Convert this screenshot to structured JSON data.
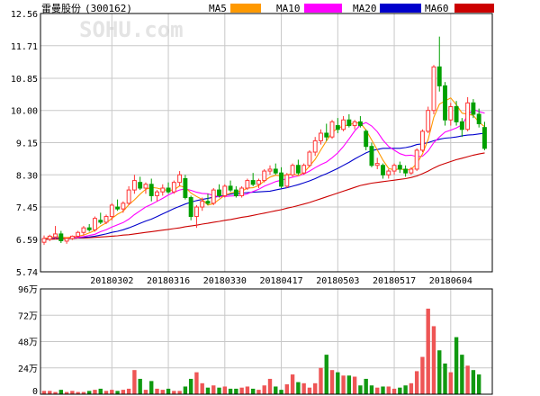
{
  "header": {
    "stock_name": "雷曼股份",
    "stock_code": "(300162)",
    "watermark": "SOHU.com"
  },
  "colors": {
    "up": "#ff3333",
    "down": "#00a000",
    "ma5": "#ff9900",
    "ma10": "#ff00ff",
    "ma20": "#0000cc",
    "ma60": "#cc0000",
    "grid": "#c8c8c8",
    "axis": "#000000"
  },
  "chart_data": [
    {
      "type": "candlestick",
      "title": "雷曼股份(300162)",
      "legend": [
        {
          "name": "MA5",
          "color": "#ff9900"
        },
        {
          "name": "MA10",
          "color": "#ff00ff"
        },
        {
          "name": "MA20",
          "color": "#0000cc"
        },
        {
          "name": "MA60",
          "color": "#cc0000"
        }
      ],
      "ylim": [
        5.74,
        12.56
      ],
      "yticks": [
        "12.56",
        "11.71",
        "10.85",
        "10.00",
        "9.15",
        "8.30",
        "7.45",
        "6.59",
        "5.74"
      ],
      "xticks": [
        {
          "index": 12,
          "label": "20180302"
        },
        {
          "index": 22,
          "label": "20180316"
        },
        {
          "index": 32,
          "label": "20180330"
        },
        {
          "index": 42,
          "label": "20180417"
        },
        {
          "index": 52,
          "label": "20180503"
        },
        {
          "index": 62,
          "label": "20180517"
        },
        {
          "index": 72,
          "label": "20180604"
        }
      ],
      "ohlc": [
        [
          6.52,
          6.7,
          6.45,
          6.62
        ],
        [
          6.6,
          6.72,
          6.55,
          6.68
        ],
        [
          6.66,
          6.95,
          6.6,
          6.74
        ],
        [
          6.74,
          6.82,
          6.5,
          6.56
        ],
        [
          6.55,
          6.65,
          6.48,
          6.62
        ],
        [
          6.62,
          6.7,
          6.58,
          6.68
        ],
        [
          6.68,
          6.82,
          6.62,
          6.78
        ],
        [
          6.78,
          6.95,
          6.7,
          6.9
        ],
        [
          6.9,
          7.0,
          6.8,
          6.85
        ],
        [
          6.85,
          7.2,
          6.8,
          7.15
        ],
        [
          7.1,
          7.3,
          7.0,
          7.05
        ],
        [
          7.05,
          7.25,
          7.0,
          7.2
        ],
        [
          7.2,
          7.55,
          7.1,
          7.5
        ],
        [
          7.45,
          7.65,
          7.35,
          7.4
        ],
        [
          7.4,
          7.6,
          7.3,
          7.55
        ],
        [
          7.55,
          8.0,
          7.5,
          7.9
        ],
        [
          7.9,
          8.3,
          7.8,
          8.15
        ],
        [
          8.1,
          8.25,
          7.9,
          7.95
        ],
        [
          7.95,
          8.1,
          7.8,
          8.05
        ],
        [
          8.05,
          8.2,
          7.6,
          7.75
        ],
        [
          7.75,
          7.9,
          7.6,
          7.85
        ],
        [
          7.85,
          8.05,
          7.75,
          7.95
        ],
        [
          7.95,
          8.1,
          7.8,
          7.85
        ],
        [
          7.85,
          8.15,
          7.8,
          8.1
        ],
        [
          8.1,
          8.4,
          8.0,
          8.3
        ],
        [
          8.2,
          8.3,
          7.65,
          7.7
        ],
        [
          7.7,
          7.75,
          7.1,
          7.2
        ],
        [
          7.2,
          7.5,
          6.9,
          7.45
        ],
        [
          7.45,
          7.7,
          7.35,
          7.6
        ],
        [
          7.6,
          7.8,
          7.5,
          7.55
        ],
        [
          7.55,
          7.95,
          7.5,
          7.9
        ],
        [
          7.9,
          8.05,
          7.7,
          7.75
        ],
        [
          7.75,
          8.05,
          7.7,
          8.0
        ],
        [
          8.0,
          8.15,
          7.85,
          7.9
        ],
        [
          7.9,
          8.0,
          7.7,
          7.75
        ],
        [
          7.75,
          8.0,
          7.7,
          7.95
        ],
        [
          7.95,
          8.2,
          7.9,
          8.15
        ],
        [
          8.15,
          8.35,
          8.0,
          8.05
        ],
        [
          8.05,
          8.2,
          7.95,
          8.15
        ],
        [
          8.15,
          8.45,
          8.1,
          8.4
        ],
        [
          8.4,
          8.55,
          8.3,
          8.45
        ],
        [
          8.45,
          8.6,
          8.3,
          8.35
        ],
        [
          8.35,
          8.5,
          7.95,
          8.0
        ],
        [
          8.0,
          8.35,
          7.95,
          8.3
        ],
        [
          8.3,
          8.6,
          8.25,
          8.55
        ],
        [
          8.55,
          8.7,
          8.3,
          8.35
        ],
        [
          8.35,
          8.6,
          8.3,
          8.55
        ],
        [
          8.55,
          8.95,
          8.5,
          8.9
        ],
        [
          8.9,
          9.3,
          8.8,
          9.2
        ],
        [
          9.2,
          9.5,
          9.1,
          9.4
        ],
        [
          9.4,
          9.65,
          9.2,
          9.3
        ],
        [
          9.3,
          9.75,
          9.25,
          9.7
        ],
        [
          9.6,
          9.8,
          9.4,
          9.5
        ],
        [
          9.5,
          9.85,
          9.45,
          9.75
        ],
        [
          9.75,
          9.9,
          9.55,
          9.6
        ],
        [
          9.6,
          9.75,
          9.5,
          9.7
        ],
        [
          9.7,
          9.85,
          9.55,
          9.6
        ],
        [
          9.45,
          9.5,
          8.95,
          9.05
        ],
        [
          9.05,
          9.15,
          8.5,
          8.55
        ],
        [
          8.55,
          8.75,
          8.45,
          8.6
        ],
        [
          8.55,
          8.6,
          8.2,
          8.3
        ],
        [
          8.3,
          8.45,
          8.2,
          8.4
        ],
        [
          8.4,
          8.6,
          8.3,
          8.55
        ],
        [
          8.55,
          8.65,
          8.35,
          8.45
        ],
        [
          8.45,
          8.55,
          8.25,
          8.35
        ],
        [
          8.35,
          8.5,
          8.3,
          8.45
        ],
        [
          8.45,
          9.0,
          8.4,
          8.95
        ],
        [
          8.95,
          9.5,
          8.9,
          9.45
        ],
        [
          9.45,
          10.1,
          9.4,
          10.0
        ],
        [
          10.0,
          11.2,
          9.9,
          11.15
        ],
        [
          11.15,
          11.95,
          10.5,
          10.65
        ],
        [
          10.65,
          10.75,
          9.6,
          9.75
        ],
        [
          9.75,
          10.2,
          9.6,
          10.1
        ],
        [
          10.1,
          10.25,
          9.6,
          9.7
        ],
        [
          9.7,
          9.8,
          9.3,
          9.5
        ],
        [
          9.5,
          10.35,
          9.45,
          10.2
        ],
        [
          10.2,
          10.3,
          9.8,
          9.9
        ],
        [
          9.9,
          10.05,
          9.55,
          9.65
        ],
        [
          9.55,
          9.7,
          8.95,
          9.0
        ]
      ],
      "ma5": [
        6.62,
        6.64,
        6.67,
        6.65,
        6.64,
        6.66,
        6.68,
        6.71,
        6.77,
        6.83,
        6.95,
        7.03,
        7.15,
        7.26,
        7.34,
        7.51,
        7.64,
        7.79,
        7.92,
        7.97,
        7.95,
        7.91,
        7.89,
        7.9,
        8.01,
        7.97,
        7.82,
        7.73,
        7.65,
        7.5,
        7.54,
        7.65,
        7.76,
        7.82,
        7.86,
        7.87,
        7.95,
        7.96,
        8.02,
        8.14,
        8.24,
        8.29,
        8.27,
        8.3,
        8.33,
        8.28,
        8.36,
        8.53,
        8.71,
        8.96,
        9.2,
        9.42,
        9.53,
        9.59,
        9.62,
        9.67,
        9.67,
        9.48,
        9.22,
        8.96,
        8.69,
        8.47,
        8.43,
        8.46,
        8.42,
        8.45,
        8.6,
        8.85,
        9.23,
        9.82,
        10.17,
        10.25,
        10.33,
        10.15,
        9.93,
        9.9,
        9.87,
        9.69,
        9.57
      ],
      "ma10": [
        6.62,
        6.64,
        6.66,
        6.65,
        6.64,
        6.64,
        6.65,
        6.67,
        6.7,
        6.73,
        6.8,
        6.85,
        6.92,
        6.98,
        7.04,
        7.13,
        7.25,
        7.35,
        7.45,
        7.52,
        7.6,
        7.68,
        7.77,
        7.84,
        7.9,
        7.93,
        7.89,
        7.84,
        7.81,
        7.8,
        7.75,
        7.72,
        7.73,
        7.74,
        7.75,
        7.76,
        7.8,
        7.86,
        7.92,
        8.0,
        8.06,
        8.12,
        8.16,
        8.2,
        8.24,
        8.27,
        8.32,
        8.4,
        8.49,
        8.57,
        8.64,
        8.75,
        8.88,
        9.05,
        9.25,
        9.46,
        9.62,
        9.68,
        9.59,
        9.44,
        9.22,
        9.05,
        8.95,
        8.86,
        8.81,
        8.82,
        8.78,
        8.79,
        8.93,
        9.15,
        9.3,
        9.43,
        9.48,
        9.54,
        9.62,
        9.87,
        10.03,
        9.97,
        9.93
      ],
      "ma20": [
        6.62,
        6.63,
        6.64,
        6.64,
        6.64,
        6.64,
        6.64,
        6.65,
        6.66,
        6.68,
        6.71,
        6.74,
        6.78,
        6.81,
        6.85,
        6.9,
        6.96,
        7.02,
        7.08,
        7.13,
        7.2,
        7.27,
        7.34,
        7.41,
        7.47,
        7.53,
        7.58,
        7.62,
        7.65,
        7.68,
        7.71,
        7.73,
        7.76,
        7.79,
        7.81,
        7.82,
        7.83,
        7.84,
        7.85,
        7.86,
        7.87,
        7.9,
        7.93,
        7.96,
        8.0,
        8.04,
        8.09,
        8.14,
        8.2,
        8.27,
        8.33,
        8.4,
        8.47,
        8.55,
        8.63,
        8.72,
        8.8,
        8.88,
        8.94,
        8.97,
        9.0,
        9.0,
        9.0,
        9.0,
        9.02,
        9.05,
        9.1,
        9.12,
        9.15,
        9.2,
        9.24,
        9.27,
        9.28,
        9.3,
        9.33,
        9.35,
        9.36,
        9.38,
        9.4
      ],
      "ma60": [
        6.6,
        6.6,
        6.61,
        6.61,
        6.62,
        6.62,
        6.63,
        6.63,
        6.64,
        6.65,
        6.66,
        6.67,
        6.68,
        6.69,
        6.71,
        6.72,
        6.74,
        6.76,
        6.78,
        6.8,
        6.82,
        6.84,
        6.86,
        6.88,
        6.9,
        6.93,
        6.95,
        6.97,
        7.0,
        7.02,
        7.05,
        7.07,
        7.1,
        7.12,
        7.15,
        7.18,
        7.2,
        7.23,
        7.26,
        7.29,
        7.32,
        7.35,
        7.38,
        7.42,
        7.45,
        7.49,
        7.53,
        7.57,
        7.62,
        7.67,
        7.72,
        7.77,
        7.82,
        7.87,
        7.92,
        7.97,
        8.02,
        8.05,
        8.08,
        8.1,
        8.12,
        8.14,
        8.16,
        8.18,
        8.2,
        8.23,
        8.27,
        8.33,
        8.4,
        8.48,
        8.55,
        8.6,
        8.65,
        8.7,
        8.74,
        8.78,
        8.82,
        8.85,
        8.88
      ]
    },
    {
      "type": "bar",
      "title": "",
      "ylim": [
        0,
        96
      ],
      "yticks": [
        "96万",
        "72万",
        "48万",
        "24万",
        "0"
      ],
      "values": [
        3,
        3,
        2,
        4,
        2,
        3,
        2,
        2,
        3,
        4,
        5,
        3,
        4,
        3,
        4,
        5,
        22,
        14,
        4,
        12,
        5,
        4,
        5,
        3,
        3,
        7,
        14,
        20,
        10,
        6,
        8,
        6,
        7,
        5,
        5,
        6,
        7,
        5,
        4,
        8,
        14,
        7,
        4,
        9,
        18,
        11,
        10,
        6,
        10,
        24,
        36,
        22,
        20,
        17,
        17,
        16,
        8,
        14,
        8,
        6,
        7,
        7,
        5,
        6,
        8,
        10,
        21,
        34,
        78,
        62,
        40,
        28,
        20,
        52,
        36,
        26,
        22,
        18
      ]
    }
  ]
}
